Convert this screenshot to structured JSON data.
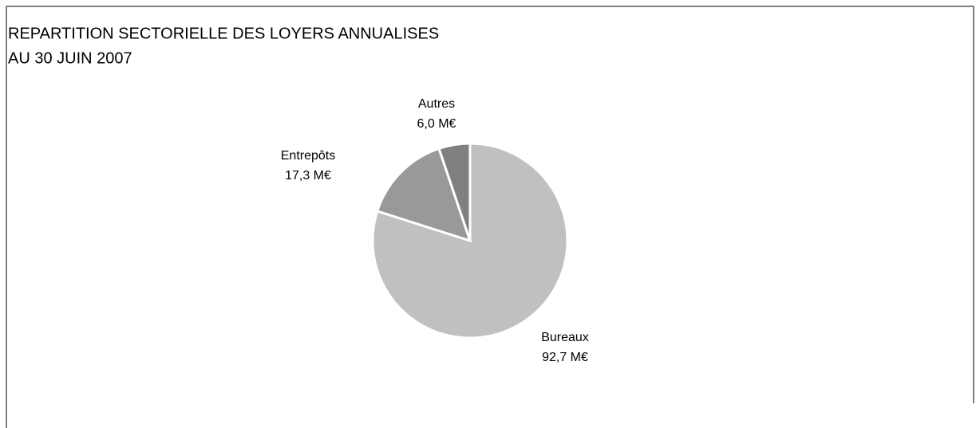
{
  "chart_data": {
    "type": "pie",
    "title": "REPARTITION SECTORIELLE DES LOYERS ANNUALISES",
    "subtitle": "AU 30 JUIN 2007",
    "categories": [
      "Bureaux",
      "Entrepôts",
      "Autres"
    ],
    "values": [
      92.7,
      17.3,
      6.0
    ],
    "value_labels": [
      "92,7 M€",
      "17,3 M€",
      "6,0 M€"
    ],
    "colors": [
      "#c0c0c0",
      "#999999",
      "#808080"
    ]
  }
}
